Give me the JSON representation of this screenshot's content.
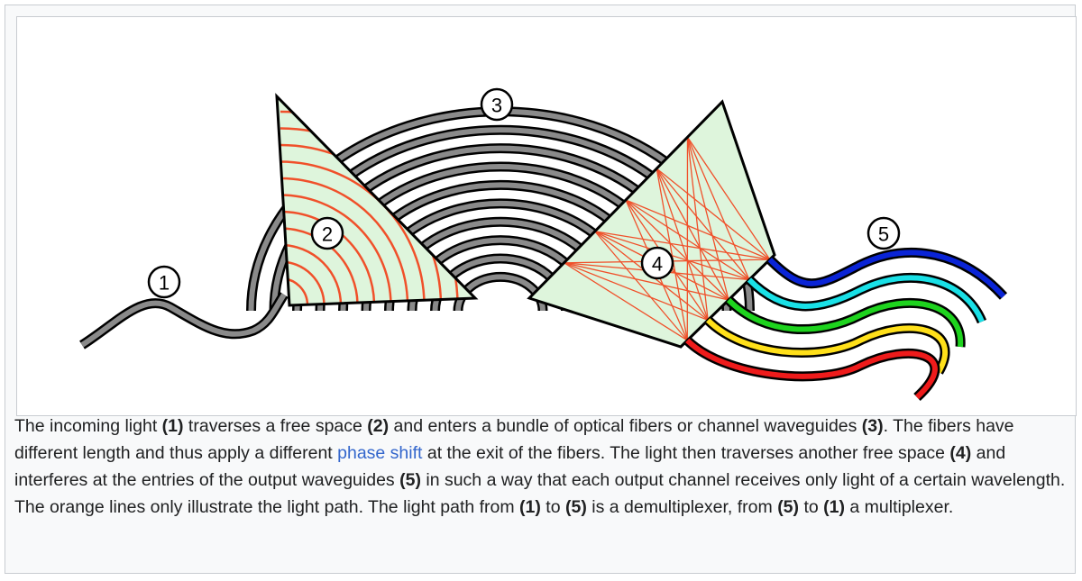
{
  "diagram": {
    "labels": [
      "1",
      "2",
      "3",
      "4",
      "5"
    ],
    "output_colors": [
      "#0a24d6",
      "#19e0e6",
      "#1ed31e",
      "#ffe01a",
      "#ee1b1b"
    ],
    "colors": {
      "fiber": "#8a8a8a",
      "free_space_fill": "#def5dc",
      "light_path": "#f0502a"
    }
  },
  "caption": {
    "segments": [
      {
        "t": "The incoming light ",
        "s": "text"
      },
      {
        "t": "(1)",
        "s": "bold"
      },
      {
        "t": " traverses a free space ",
        "s": "text"
      },
      {
        "t": "(2)",
        "s": "bold"
      },
      {
        "t": " and enters a bundle of optical fibers or channel waveguides ",
        "s": "text"
      },
      {
        "t": "(3)",
        "s": "bold"
      },
      {
        "t": ". The fibers have different length and thus apply a different ",
        "s": "text"
      },
      {
        "t": "phase shift",
        "s": "link"
      },
      {
        "t": " at the exit of the fibers. The light then traverses another free space ",
        "s": "text"
      },
      {
        "t": "(4)",
        "s": "bold"
      },
      {
        "t": " and interferes at the entries of the output waveguides ",
        "s": "text"
      },
      {
        "t": "(5)",
        "s": "bold"
      },
      {
        "t": " in such a way that each output channel receives only light of a certain wavelength. The orange lines only illustrate the light path. The light path from ",
        "s": "text"
      },
      {
        "t": "(1)",
        "s": "bold"
      },
      {
        "t": " to ",
        "s": "text"
      },
      {
        "t": "(5)",
        "s": "bold"
      },
      {
        "t": " is a demultiplexer, from ",
        "s": "text"
      },
      {
        "t": "(5)",
        "s": "bold"
      },
      {
        "t": " to ",
        "s": "text"
      },
      {
        "t": "(1)",
        "s": "bold"
      },
      {
        "t": " a multiplexer.",
        "s": "text"
      }
    ]
  }
}
